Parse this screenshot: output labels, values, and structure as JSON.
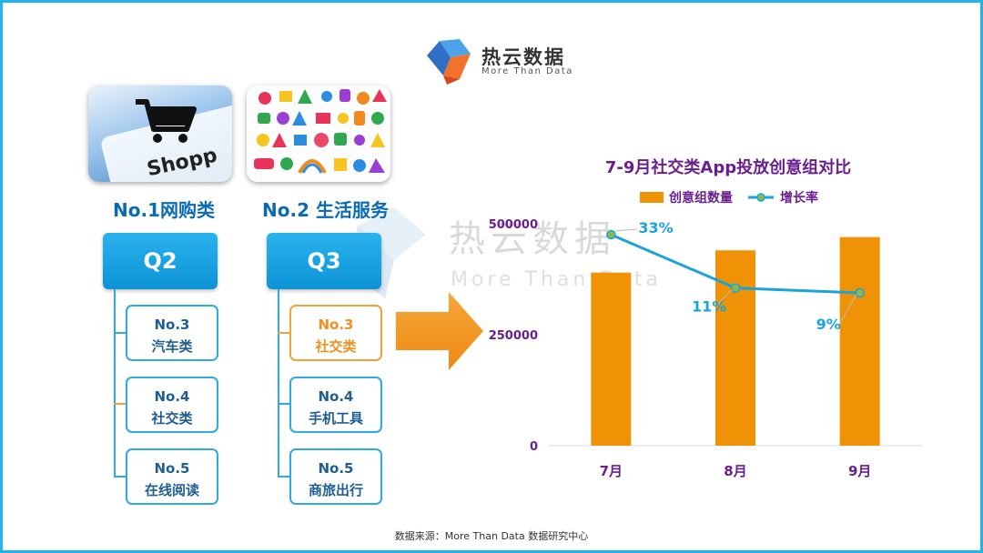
{
  "logo": {
    "name": "热云数据",
    "tagline": "More Than Data"
  },
  "watermark": {
    "name": "热云数据",
    "tagline": "More Than Data"
  },
  "left_panel": {
    "categories": [
      {
        "title": "No.1网购类",
        "image_text": "Shopp"
      },
      {
        "title": "No.2 生活服务"
      }
    ],
    "columns": [
      {
        "quarter": "Q2",
        "items": [
          {
            "rank": "No.3",
            "name": "汽车类"
          },
          {
            "rank": "No.4",
            "name": "社交类"
          },
          {
            "rank": "No.5",
            "name": "在线阅读"
          }
        ]
      },
      {
        "quarter": "Q3",
        "items": [
          {
            "rank": "No.3",
            "name": "社交类"
          },
          {
            "rank": "No.4",
            "name": "手机工具"
          },
          {
            "rank": "No.5",
            "name": "商旅出行"
          }
        ]
      }
    ]
  },
  "colors": {
    "border": "#27b3e8",
    "bar": "#ef9206",
    "line": "#1aa3dc",
    "title": "#6a1f8f",
    "highlight": "#f0901e"
  },
  "chart_data": {
    "type": "bar",
    "title": "7-9月社交类App投放创意组对比",
    "categories": [
      "7月",
      "8月",
      "9月"
    ],
    "series": [
      {
        "name": "创意组数量",
        "type": "bar",
        "values": [
          390000,
          440000,
          470000
        ]
      },
      {
        "name": "增长率",
        "type": "line",
        "values": [
          0.33,
          0.11,
          0.09
        ],
        "labels": [
          "33%",
          "11%",
          "9%"
        ]
      }
    ],
    "ylim": [
      0,
      500000
    ],
    "yticks": [
      "0",
      "250000",
      "500000"
    ],
    "ytick_values": [
      0,
      250000,
      500000
    ],
    "legend_position": "top",
    "grid": false
  },
  "footer": {
    "source": "数据来源：More Than Data 数据研究中心"
  }
}
